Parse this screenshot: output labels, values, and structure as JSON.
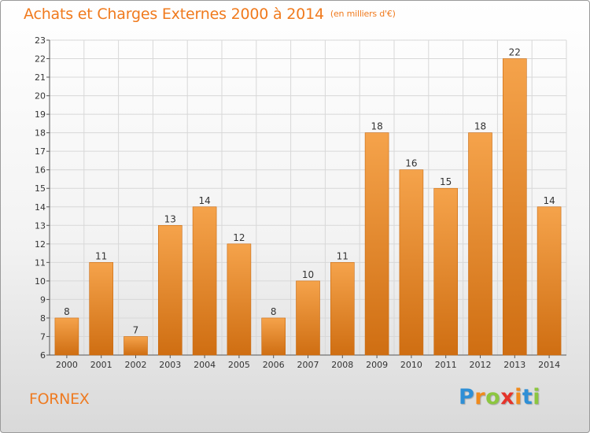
{
  "page": {
    "title": "Achats et Charges Externes 2000 à 2014",
    "unit_label": "(en milliers d'€)",
    "commune": "FORNEX",
    "logo": {
      "letters": [
        "P",
        "r",
        "o",
        "x",
        "i",
        "t",
        "i"
      ],
      "colors": [
        "#2e8fd6",
        "#f08a1c",
        "#8cc63f",
        "#e5332a",
        "#f08a1c",
        "#2e8fd6",
        "#8cc63f"
      ]
    }
  },
  "chart_data": {
    "type": "bar",
    "title": "Achats et Charges Externes 2000 à 2014",
    "subtitle": "(en milliers d'€)",
    "xlabel": "",
    "ylabel": "",
    "categories": [
      "2000",
      "2001",
      "2002",
      "2003",
      "2004",
      "2005",
      "2006",
      "2007",
      "2008",
      "2009",
      "2010",
      "2011",
      "2012",
      "2013",
      "2014"
    ],
    "values": [
      8,
      11,
      7,
      13,
      14,
      12,
      8,
      10,
      11,
      18,
      16,
      15,
      18,
      22,
      14
    ],
    "ylim": [
      6,
      23
    ],
    "yticks": [
      "6",
      "7",
      "8",
      "9",
      "10",
      "11",
      "12",
      "13",
      "14",
      "15",
      "16",
      "17",
      "18",
      "19",
      "20",
      "21",
      "22",
      "23"
    ],
    "grid": true,
    "legend": "none",
    "colors": {
      "bar_top": "#f5a34b",
      "bar_bottom": "#cf6e12",
      "title": "#f07a1d",
      "grid": "#d8d8d8"
    }
  }
}
